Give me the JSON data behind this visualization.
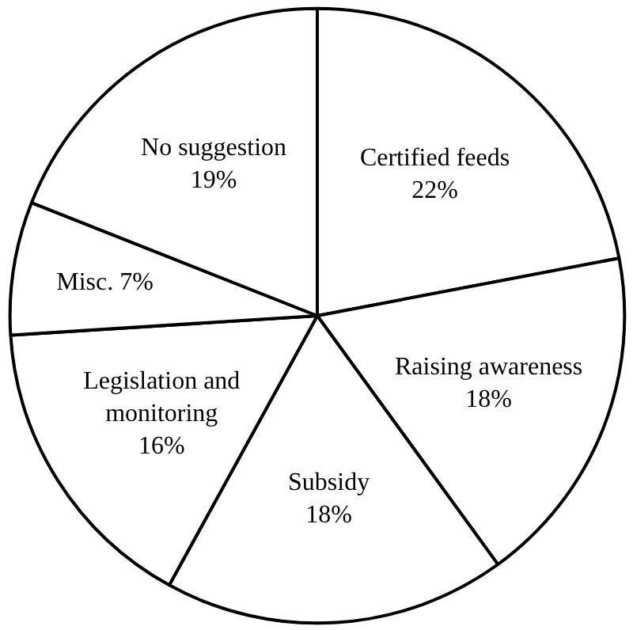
{
  "chart_data": {
    "type": "pie",
    "categories": [
      "Certified feeds",
      "Raising awareness",
      "Subsidy",
      "Legislation and monitoring",
      "Misc.",
      "No suggestion"
    ],
    "values": [
      22,
      18,
      18,
      16,
      7,
      19
    ],
    "value_labels": [
      "22%",
      "18%",
      "18%",
      "16%",
      "7%",
      "19%"
    ],
    "colors": [
      "#ffffff",
      "#ffffff",
      "#ffffff",
      "#ffffff",
      "#ffffff",
      "#ffffff"
    ]
  }
}
